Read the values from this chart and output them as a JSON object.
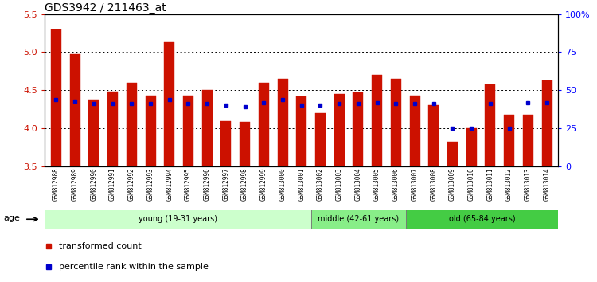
{
  "title": "GDS3942 / 211463_at",
  "samples": [
    "GSM812988",
    "GSM812989",
    "GSM812990",
    "GSM812991",
    "GSM812992",
    "GSM812993",
    "GSM812994",
    "GSM812995",
    "GSM812996",
    "GSM812997",
    "GSM812998",
    "GSM812999",
    "GSM813000",
    "GSM813001",
    "GSM813002",
    "GSM813003",
    "GSM813004",
    "GSM813005",
    "GSM813006",
    "GSM813007",
    "GSM813008",
    "GSM813009",
    "GSM813010",
    "GSM813011",
    "GSM813012",
    "GSM813013",
    "GSM813014"
  ],
  "transformed_count": [
    5.3,
    4.97,
    4.38,
    4.48,
    4.6,
    4.43,
    5.13,
    4.43,
    4.5,
    4.1,
    4.08,
    4.6,
    4.65,
    4.42,
    4.2,
    4.45,
    4.47,
    4.7,
    4.65,
    4.43,
    4.3,
    3.82,
    4.0,
    4.58,
    4.18,
    4.18,
    4.63
  ],
  "percentile_rank": [
    44,
    43,
    41,
    41,
    41,
    41,
    44,
    41,
    41,
    40,
    39,
    42,
    44,
    40,
    40,
    41,
    41,
    42,
    41,
    41,
    41,
    25,
    25,
    41,
    25,
    42,
    42
  ],
  "y_min": 3.5,
  "y_max": 5.5,
  "y_ticks": [
    3.5,
    4.0,
    4.5,
    5.0,
    5.5
  ],
  "y2_ticks": [
    0,
    25,
    50,
    75,
    100
  ],
  "y2_labels": [
    "0",
    "25",
    "50",
    "75",
    "100%"
  ],
  "bar_color": "#cc1100",
  "dot_color": "#0000cc",
  "groups": [
    {
      "label": "young (19-31 years)",
      "start": 0,
      "end": 14,
      "color": "#ccffcc"
    },
    {
      "label": "middle (42-61 years)",
      "start": 14,
      "end": 19,
      "color": "#88ee88"
    },
    {
      "label": "old (65-84 years)",
      "start": 19,
      "end": 27,
      "color": "#44cc44"
    }
  ],
  "age_label": "age",
  "legend": [
    {
      "label": "transformed count",
      "color": "#cc1100"
    },
    {
      "label": "percentile rank within the sample",
      "color": "#0000cc"
    }
  ],
  "background_color": "#ffffff",
  "xtick_bg_color": "#cccccc",
  "title_fontsize": 10,
  "bar_width": 0.55
}
